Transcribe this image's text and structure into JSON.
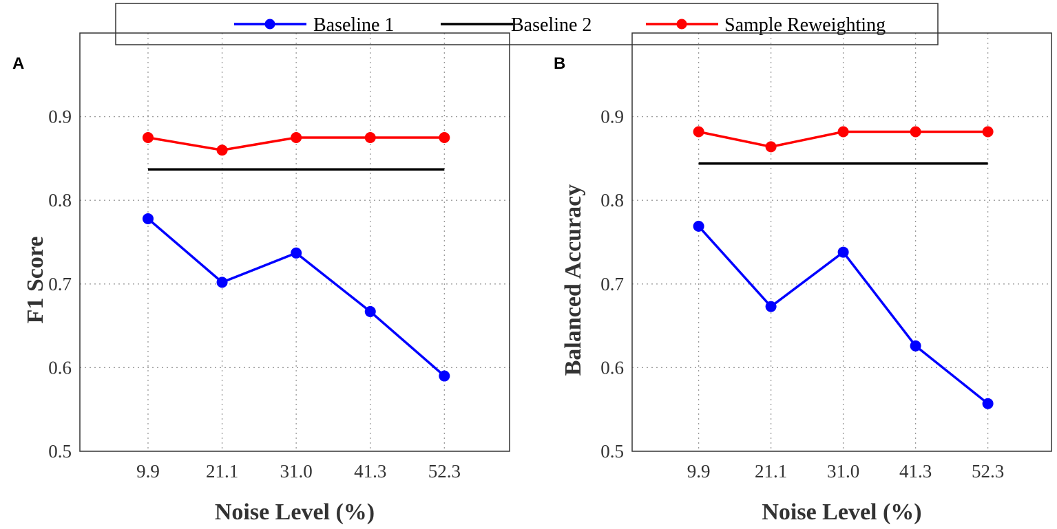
{
  "legend": {
    "entries": [
      {
        "label": "Baseline 1",
        "color": "#0000ff",
        "marker": "circle"
      },
      {
        "label": "Baseline 2",
        "color": "#000000",
        "marker": "none"
      },
      {
        "label": "Sample Reweighting",
        "color": "#ff0000",
        "marker": "circle"
      }
    ],
    "placement": "top-center"
  },
  "chart_data": [
    {
      "type": "line",
      "panel_label": "A",
      "xlabel": "Noise Level (%)",
      "ylabel": "F1 Score",
      "categories": [
        "9.9",
        "21.1",
        "31.0",
        "41.3",
        "52.3"
      ],
      "ylim": [
        0.5,
        1.0
      ],
      "yticks": [
        "0.5",
        "0.6",
        "0.7",
        "0.8",
        "0.9"
      ],
      "grid": true,
      "series": [
        {
          "name": "Baseline 1",
          "values": [
            0.778,
            0.702,
            0.737,
            0.667,
            0.59
          ]
        },
        {
          "name": "Baseline 2",
          "values": [
            0.837,
            0.837,
            0.837,
            0.837,
            0.837
          ]
        },
        {
          "name": "Sample Reweighting",
          "values": [
            0.875,
            0.86,
            0.875,
            0.875,
            0.875
          ]
        }
      ]
    },
    {
      "type": "line",
      "panel_label": "B",
      "xlabel": "Noise Level (%)",
      "ylabel": "Balanced Accuracy",
      "categories": [
        "9.9",
        "21.1",
        "31.0",
        "41.3",
        "52.3"
      ],
      "ylim": [
        0.5,
        1.0
      ],
      "yticks": [
        "0.5",
        "0.6",
        "0.7",
        "0.8",
        "0.9"
      ],
      "grid": true,
      "series": [
        {
          "name": "Baseline 1",
          "values": [
            0.769,
            0.673,
            0.738,
            0.626,
            0.557
          ]
        },
        {
          "name": "Baseline 2",
          "values": [
            0.844,
            0.844,
            0.844,
            0.844,
            0.844
          ]
        },
        {
          "name": "Sample Reweighting",
          "values": [
            0.882,
            0.864,
            0.882,
            0.882,
            0.882
          ]
        }
      ]
    }
  ]
}
